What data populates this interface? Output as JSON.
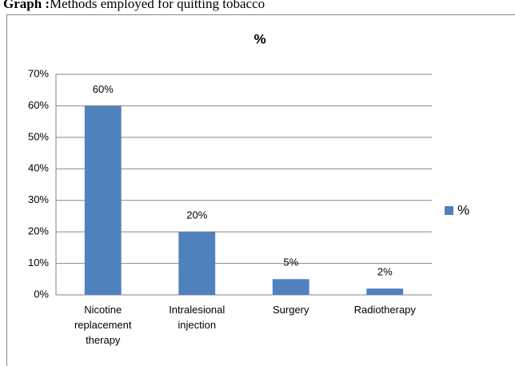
{
  "heading": {
    "label": "Graph :",
    "text": "Methods employed for quitting tobacco"
  },
  "chart_data": {
    "type": "bar",
    "title": "%",
    "categories": [
      "Nicotine replacement therapy",
      "Intralesional injection",
      "Surgery",
      "Radiotherapy"
    ],
    "series": [
      {
        "name": "%",
        "color": "#4f81bd",
        "values": [
          60,
          20,
          5,
          2
        ],
        "value_labels": [
          "60%",
          "20%",
          "5%",
          "2%"
        ]
      }
    ],
    "ylim": [
      0,
      70
    ],
    "yticks": [
      {
        "value": 0,
        "label": "0%"
      },
      {
        "value": 10,
        "label": "10%"
      },
      {
        "value": 20,
        "label": "20%"
      },
      {
        "value": 30,
        "label": "30%"
      },
      {
        "value": 40,
        "label": "40%"
      },
      {
        "value": 50,
        "label": "50%"
      },
      {
        "value": 60,
        "label": "60%"
      },
      {
        "value": 70,
        "label": "70%"
      }
    ],
    "grid": true,
    "legend": "right"
  }
}
